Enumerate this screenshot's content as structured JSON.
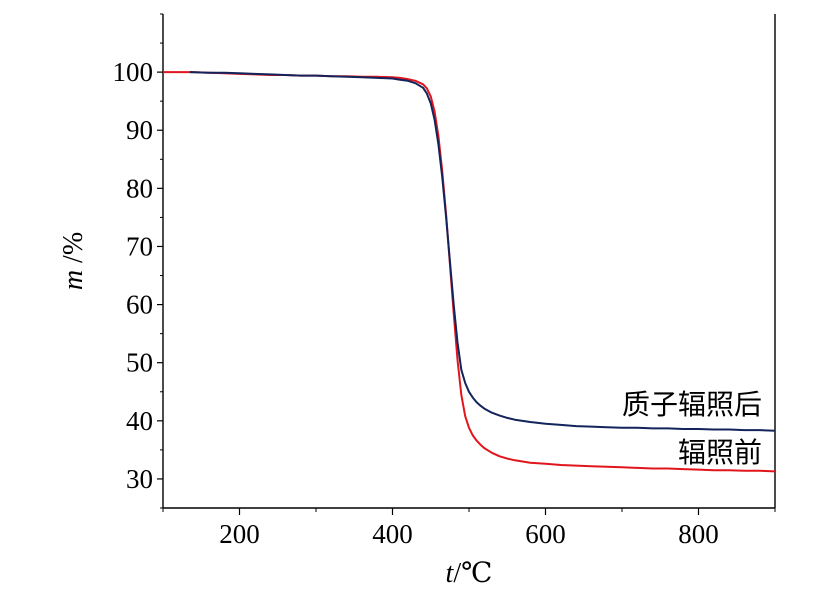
{
  "chart_data": {
    "type": "line",
    "xlabel": {
      "var": "t",
      "unit": "/℃"
    },
    "ylabel": {
      "var": "m",
      "unit": " /%"
    },
    "xlim": [
      100,
      900
    ],
    "ylim": [
      25,
      110
    ],
    "xticks": [
      200,
      400,
      600,
      800
    ],
    "yticks": [
      30,
      40,
      50,
      60,
      70,
      80,
      90,
      100
    ],
    "grid": false,
    "series": [
      {
        "name": "辐照前",
        "color": "#e0161c",
        "x": [
          100,
          120,
          140,
          160,
          180,
          200,
          220,
          240,
          260,
          280,
          300,
          320,
          340,
          360,
          380,
          400,
          410,
          420,
          430,
          440,
          445,
          450,
          455,
          460,
          465,
          470,
          475,
          480,
          485,
          490,
          495,
          500,
          505,
          510,
          515,
          520,
          530,
          540,
          550,
          560,
          580,
          600,
          620,
          640,
          660,
          680,
          700,
          720,
          740,
          760,
          780,
          800,
          820,
          840,
          860,
          880,
          900
        ],
        "y": [
          100,
          100,
          100,
          99.9,
          99.8,
          99.7,
          99.6,
          99.5,
          99.5,
          99.4,
          99.4,
          99.3,
          99.3,
          99.2,
          99.2,
          99.1,
          99.0,
          98.8,
          98.5,
          97.9,
          97.2,
          95.8,
          93.2,
          89.0,
          83.0,
          75.5,
          67.0,
          58.5,
          50.5,
          44.5,
          40.8,
          38.8,
          37.5,
          36.6,
          35.9,
          35.3,
          34.5,
          33.9,
          33.5,
          33.2,
          32.8,
          32.6,
          32.4,
          32.3,
          32.2,
          32.1,
          32.0,
          31.9,
          31.8,
          31.8,
          31.7,
          31.6,
          31.5,
          31.5,
          31.4,
          31.4,
          31.3
        ]
      },
      {
        "name": "质子辐照后",
        "color": "#13235b",
        "x": [
          135,
          160,
          180,
          200,
          220,
          240,
          260,
          280,
          300,
          320,
          340,
          360,
          380,
          400,
          410,
          420,
          430,
          440,
          445,
          450,
          455,
          460,
          465,
          470,
          475,
          480,
          485,
          490,
          495,
          500,
          505,
          510,
          515,
          520,
          530,
          540,
          550,
          560,
          580,
          600,
          620,
          640,
          660,
          680,
          700,
          720,
          740,
          760,
          780,
          800,
          820,
          840,
          860,
          880,
          900
        ],
        "y": [
          100,
          99.9,
          99.9,
          99.8,
          99.7,
          99.6,
          99.5,
          99.4,
          99.4,
          99.3,
          99.2,
          99.1,
          99.0,
          98.9,
          98.7,
          98.5,
          98.1,
          97.3,
          96.3,
          94.6,
          91.8,
          87.6,
          82.0,
          75.0,
          67.5,
          60.0,
          53.5,
          48.8,
          46.5,
          45.0,
          44.0,
          43.2,
          42.6,
          42.1,
          41.4,
          40.9,
          40.5,
          40.2,
          39.8,
          39.5,
          39.3,
          39.1,
          39.0,
          38.9,
          38.8,
          38.8,
          38.7,
          38.7,
          38.6,
          38.6,
          38.5,
          38.5,
          38.4,
          38.4,
          38.3
        ]
      }
    ]
  }
}
